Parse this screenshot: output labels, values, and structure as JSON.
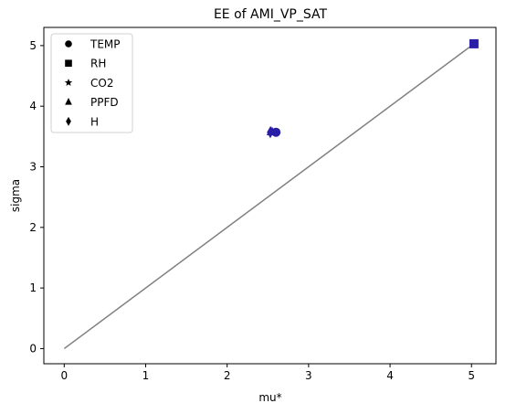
{
  "chart_data": {
    "type": "scatter",
    "title": "EE of AMI_VP_SAT",
    "xlabel": "mu*",
    "ylabel": "sigma",
    "xlim": [
      -0.25,
      5.3
    ],
    "ylim": [
      -0.25,
      5.3
    ],
    "xticks": [
      0,
      1,
      2,
      3,
      4,
      5
    ],
    "yticks": [
      0,
      1,
      2,
      3,
      4,
      5
    ],
    "grid": false,
    "legend_position": "top-left",
    "reference_line": {
      "x": [
        0,
        5.05
      ],
      "y": [
        0,
        5.05
      ],
      "color": "#808080"
    },
    "series": [
      {
        "name": "TEMP",
        "marker": "circle",
        "x": 2.6,
        "y": 3.57,
        "color": "#2a1fa6"
      },
      {
        "name": "RH",
        "marker": "square",
        "x": 5.03,
        "y": 5.03,
        "color": "#2a1fa6"
      },
      {
        "name": "CO2",
        "marker": "star",
        "x": 2.56,
        "y": 3.57,
        "color": "#2a1fa6"
      },
      {
        "name": "PPFD",
        "marker": "triangle",
        "x": 2.54,
        "y": 3.58,
        "color": "#2a1fa6"
      },
      {
        "name": "H",
        "marker": "diamond",
        "x": 2.53,
        "y": 3.57,
        "color": "#2a1fa6"
      }
    ]
  }
}
